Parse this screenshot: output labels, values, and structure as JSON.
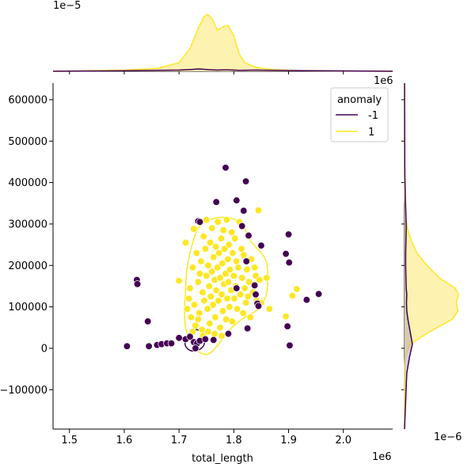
{
  "chart_data": {
    "type": "scatter",
    "title": "",
    "xlabel": "total_length",
    "ylabel": "",
    "x_offset_label": "1e6",
    "y_offset_label": "1e6",
    "top_offset_label": "1e−5",
    "right_offset_label": "1e−6",
    "xlim": [
      1.47,
      2.09
    ],
    "ylim": [
      -195000,
      640000
    ],
    "x_ticks": [
      1.5,
      1.6,
      1.7,
      1.8,
      1.9,
      2.0
    ],
    "x_tick_labels": [
      "1.5",
      "1.6",
      "1.7",
      "1.8",
      "1.9",
      "2.0"
    ],
    "y_ticks": [
      -100000,
      0,
      100000,
      200000,
      300000,
      400000,
      500000,
      600000
    ],
    "y_tick_labels": [
      "−100000",
      "0",
      "100000",
      "200000",
      "300000",
      "400000",
      "500000",
      "600000"
    ],
    "legend": {
      "title": "anomaly",
      "placement": "top-right",
      "entries": [
        {
          "label": "-1",
          "color": "#440154"
        },
        {
          "label": "1",
          "color": "#fde725"
        }
      ]
    },
    "colors": {
      "anomaly_neg": "#440154",
      "anomaly_pos": "#fde725",
      "fill_pos": "#fdf2b0"
    },
    "series": [
      {
        "name": "-1",
        "points": [
          [
            1.605,
            5000
          ],
          [
            1.623,
            165000
          ],
          [
            1.624,
            155000
          ],
          [
            1.643,
            65000
          ],
          [
            1.645,
            5000
          ],
          [
            1.66,
            8000
          ],
          [
            1.668,
            10000
          ],
          [
            1.678,
            12000
          ],
          [
            1.686,
            12000
          ],
          [
            1.7,
            25000
          ],
          [
            1.712,
            22000
          ],
          [
            1.72,
            28000
          ],
          [
            1.727,
            15000
          ],
          [
            1.733,
            12000
          ],
          [
            1.73,
            0
          ],
          [
            1.738,
            18000
          ],
          [
            1.748,
            22000
          ],
          [
            1.735,
            307000
          ],
          [
            1.738,
            305000
          ],
          [
            1.763,
            20000
          ],
          [
            1.768,
            353000
          ],
          [
            1.785,
            436000
          ],
          [
            1.79,
            35000
          ],
          [
            1.805,
            357000
          ],
          [
            1.805,
            145000
          ],
          [
            1.815,
            295000
          ],
          [
            1.818,
            332000
          ],
          [
            1.822,
            403000
          ],
          [
            1.823,
            210000
          ],
          [
            1.825,
            48000
          ],
          [
            1.827,
            272000
          ],
          [
            1.838,
            152000
          ],
          [
            1.84,
            130000
          ],
          [
            1.843,
            108000
          ],
          [
            1.845,
            102000
          ],
          [
            1.85,
            248000
          ],
          [
            1.895,
            228000
          ],
          [
            1.898,
            53000
          ],
          [
            1.9,
            275000
          ],
          [
            1.901,
            207000
          ],
          [
            1.902,
            7000
          ],
          [
            1.933,
            117000
          ],
          [
            1.955,
            131000
          ]
        ]
      },
      {
        "name": "1",
        "points": [
          [
            1.7,
            163000
          ],
          [
            1.712,
            255000
          ],
          [
            1.715,
            95000
          ],
          [
            1.718,
            120000
          ],
          [
            1.72,
            145000
          ],
          [
            1.722,
            75000
          ],
          [
            1.725,
            195000
          ],
          [
            1.727,
            288000
          ],
          [
            1.728,
            105000
          ],
          [
            1.73,
            55000
          ],
          [
            1.732,
            230000
          ],
          [
            1.735,
            160000
          ],
          [
            1.737,
            85000
          ],
          [
            1.738,
            180000
          ],
          [
            1.74,
            210000
          ],
          [
            1.742,
            45000
          ],
          [
            1.743,
            135000
          ],
          [
            1.745,
            270000
          ],
          [
            1.746,
            115000
          ],
          [
            1.748,
            240000
          ],
          [
            1.75,
            175000
          ],
          [
            1.75,
            310000
          ],
          [
            1.752,
            95000
          ],
          [
            1.753,
            200000
          ],
          [
            1.755,
            150000
          ],
          [
            1.756,
            60000
          ],
          [
            1.757,
            255000
          ],
          [
            1.758,
            125000
          ],
          [
            1.76,
            185000
          ],
          [
            1.76,
            290000
          ],
          [
            1.762,
            105000
          ],
          [
            1.763,
            220000
          ],
          [
            1.765,
            165000
          ],
          [
            1.766,
            75000
          ],
          [
            1.767,
            245000
          ],
          [
            1.768,
            140000
          ],
          [
            1.77,
            195000
          ],
          [
            1.771,
            305000
          ],
          [
            1.772,
            115000
          ],
          [
            1.773,
            230000
          ],
          [
            1.775,
            170000
          ],
          [
            1.775,
            50000
          ],
          [
            1.777,
            265000
          ],
          [
            1.778,
            130000
          ],
          [
            1.779,
            205000
          ],
          [
            1.78,
            90000
          ],
          [
            1.781,
            285000
          ],
          [
            1.782,
            155000
          ],
          [
            1.783,
            240000
          ],
          [
            1.785,
            180000
          ],
          [
            1.786,
            70000
          ],
          [
            1.787,
            310000
          ],
          [
            1.788,
            120000
          ],
          [
            1.789,
            215000
          ],
          [
            1.79,
            160000
          ],
          [
            1.791,
            250000
          ],
          [
            1.792,
            100000
          ],
          [
            1.793,
            190000
          ],
          [
            1.795,
            140000
          ],
          [
            1.796,
            280000
          ],
          [
            1.797,
            65000
          ],
          [
            1.798,
            230000
          ],
          [
            1.8,
            175000
          ],
          [
            1.801,
            120000
          ],
          [
            1.802,
            265000
          ],
          [
            1.804,
            150000
          ],
          [
            1.805,
            210000
          ],
          [
            1.806,
            95000
          ],
          [
            1.808,
            195000
          ],
          [
            1.81,
            305000
          ],
          [
            1.812,
            130000
          ],
          [
            1.814,
            240000
          ],
          [
            1.815,
            170000
          ],
          [
            1.817,
            85000
          ],
          [
            1.818,
            225000
          ],
          [
            1.82,
            145000
          ],
          [
            1.822,
            110000
          ],
          [
            1.824,
            190000
          ],
          [
            1.826,
            125000
          ],
          [
            1.828,
            160000
          ],
          [
            1.83,
            75000
          ],
          [
            1.832,
            215000
          ],
          [
            1.835,
            135000
          ],
          [
            1.838,
            195000
          ],
          [
            1.84,
            175000
          ],
          [
            1.842,
            115000
          ],
          [
            1.845,
            333000
          ],
          [
            1.847,
            165000
          ],
          [
            1.85,
            110000
          ],
          [
            1.86,
            170000
          ],
          [
            1.865,
            95000
          ],
          [
            1.895,
            77000
          ],
          [
            1.907,
            127000
          ],
          [
            1.915,
            143000
          ],
          [
            1.725,
            40000
          ],
          [
            1.735,
            70000
          ],
          [
            1.744,
            30000
          ],
          [
            1.753,
            40000
          ],
          [
            1.765,
            35000
          ],
          [
            1.778,
            30000
          ]
        ]
      }
    ],
    "contours": [
      {
        "name": "1",
        "points": [
          [
            1.72,
            230000
          ],
          [
            1.735,
            290000
          ],
          [
            1.76,
            312000
          ],
          [
            1.79,
            315000
          ],
          [
            1.815,
            300000
          ],
          [
            1.83,
            260000
          ],
          [
            1.85,
            230000
          ],
          [
            1.86,
            205000
          ],
          [
            1.862,
            158000
          ],
          [
            1.858,
            125000
          ],
          [
            1.845,
            95000
          ],
          [
            1.82,
            75000
          ],
          [
            1.8,
            55000
          ],
          [
            1.79,
            40000
          ],
          [
            1.775,
            15000
          ],
          [
            1.76,
            -8000
          ],
          [
            1.748,
            -15000
          ],
          [
            1.733,
            -5000
          ],
          [
            1.72,
            20000
          ],
          [
            1.712,
            50000
          ],
          [
            1.71,
            90000
          ],
          [
            1.712,
            140000
          ],
          [
            1.714,
            185000
          ]
        ]
      },
      {
        "name": "-1",
        "points": [
          [
            1.712,
            20000
          ],
          [
            1.72,
            38000
          ],
          [
            1.733,
            45000
          ],
          [
            1.745,
            32000
          ],
          [
            1.746,
            10000
          ],
          [
            1.737,
            -3000
          ],
          [
            1.722,
            -6000
          ],
          [
            1.712,
            5000
          ]
        ]
      }
    ],
    "marginal_x_density": {
      "x": [
        1.47,
        1.6,
        1.66,
        1.7,
        1.72,
        1.735,
        1.745,
        1.752,
        1.76,
        1.77,
        1.78,
        1.79,
        1.8,
        1.81,
        1.82,
        1.84,
        1.87,
        1.92,
        2.09
      ],
      "pos": [
        0,
        0.02,
        0.05,
        0.15,
        0.4,
        0.75,
        0.95,
        1.0,
        0.93,
        0.72,
        0.78,
        0.8,
        0.62,
        0.3,
        0.15,
        0.07,
        0.03,
        0.01,
        0
      ],
      "neg": [
        0,
        0.008,
        0.015,
        0.02,
        0.03,
        0.04,
        0.035,
        0.03,
        0.025,
        0.02,
        0.025,
        0.025,
        0.02,
        0.015,
        0.018,
        0.02,
        0.015,
        0.01,
        0
      ]
    },
    "marginal_y_density": {
      "y": [
        -195000,
        -60000,
        -20000,
        10000,
        40000,
        70000,
        90000,
        110000,
        130000,
        145000,
        170000,
        200000,
        230000,
        260000,
        290000,
        320000,
        360000,
        420000,
        640000
      ],
      "pos": [
        0,
        0,
        0.01,
        0.1,
        0.45,
        0.85,
        0.95,
        0.92,
        0.96,
        0.9,
        0.62,
        0.4,
        0.22,
        0.12,
        0.05,
        0.02,
        0.005,
        0,
        0
      ],
      "neg": [
        0,
        0.04,
        0.09,
        0.14,
        0.1,
        0.06,
        0.04,
        0.035,
        0.04,
        0.03,
        0.025,
        0.02,
        0.02,
        0.025,
        0.03,
        0.025,
        0.015,
        0.005,
        0
      ]
    }
  }
}
